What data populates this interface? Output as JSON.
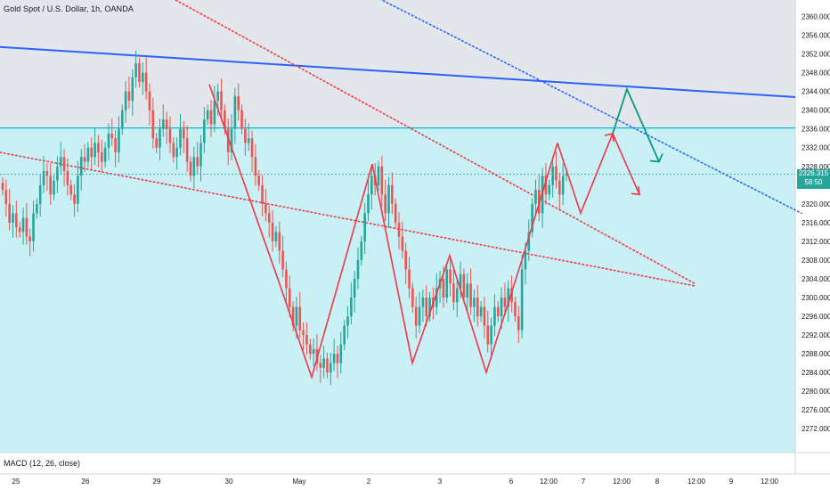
{
  "header": {
    "title": "Gold Spot / U.S. Dollar, 1h, OANDA"
  },
  "indicator": {
    "label": "MACD (12, 26, close)"
  },
  "last_price": {
    "value": "2326.315",
    "countdown": "58:50"
  },
  "colors": {
    "up": "#26a69a",
    "down": "#ef5350",
    "upper_zone": "#e3e6ea",
    "lower_zone": "#c9f0f5",
    "resistance": "#2962ff",
    "level_line": "#00bcd4",
    "trend_dotted_red": "#f23645",
    "trend_dotted_blue": "#2962ff",
    "zigzag": "#f23645",
    "projection_bull": "#089981",
    "projection_bear": "#f23645"
  },
  "chart_data": {
    "type": "candlestick",
    "title": "Gold Spot / U.S. Dollar, 1h, OANDA",
    "ylim": [
      2269,
      2362
    ],
    "y_ticks": [
      "2360.000",
      "2356.000",
      "2352.000",
      "2348.000",
      "2344.000",
      "2340.000",
      "2336.000",
      "2332.000",
      "2328.000",
      "2324.000",
      "2320.000",
      "2316.000",
      "2312.000",
      "2308.000",
      "2304.000",
      "2300.000",
      "2296.000",
      "2292.000",
      "2288.000",
      "2284.000",
      "2280.000",
      "2276.000",
      "2272.000"
    ],
    "x_ticks": [
      {
        "label": "25",
        "at": "Apr 25"
      },
      {
        "label": "26",
        "at": "Apr 26"
      },
      {
        "label": "29",
        "at": "Apr 29"
      },
      {
        "label": "30",
        "at": "Apr 30"
      },
      {
        "label": "May",
        "at": "May 1"
      },
      {
        "label": "2",
        "at": "May 2"
      },
      {
        "label": "3",
        "at": "May 3"
      },
      {
        "label": "6",
        "at": "May 6"
      },
      {
        "label": "12:00",
        "at": "May 6 12:00"
      },
      {
        "label": "7",
        "at": "May 7"
      },
      {
        "label": "12:00",
        "at": "May 7 12:00"
      },
      {
        "label": "8",
        "at": "May 8"
      },
      {
        "label": "12:00",
        "at": "May 8 12:00"
      },
      {
        "label": "9",
        "at": "May 9"
      },
      {
        "label": "12:00",
        "at": "May 9 12:00"
      }
    ],
    "close_path": [
      2323,
      2320,
      2316,
      2318,
      2315,
      2314,
      2317,
      2313,
      2312,
      2318,
      2320,
      2324,
      2327,
      2326,
      2322,
      2325,
      2328,
      2330,
      2327,
      2324,
      2322,
      2320,
      2326,
      2330,
      2329,
      2332,
      2330,
      2333,
      2331,
      2329,
      2332,
      2335,
      2334,
      2331,
      2336,
      2340,
      2344,
      2342,
      2347,
      2350,
      2346,
      2348,
      2344,
      2340,
      2334,
      2332,
      2336,
      2338,
      2336,
      2333,
      2330,
      2332,
      2336,
      2334,
      2329,
      2326,
      2330,
      2328,
      2333,
      2338,
      2340,
      2337,
      2342,
      2344,
      2340,
      2336,
      2331,
      2336,
      2343,
      2340,
      2336,
      2333,
      2334,
      2330,
      2326,
      2324,
      2320,
      2318,
      2316,
      2312,
      2314,
      2310,
      2306,
      2302,
      2298,
      2294,
      2298,
      2293,
      2292,
      2290,
      2288,
      2289,
      2286,
      2285,
      2287,
      2284,
      2286,
      2288,
      2286,
      2290,
      2294,
      2296,
      2300,
      2304,
      2308,
      2312,
      2318,
      2322,
      2326,
      2324,
      2328,
      2322,
      2318,
      2324,
      2320,
      2316,
      2313,
      2310,
      2306,
      2302,
      2298,
      2294,
      2298,
      2300,
      2296,
      2300,
      2298,
      2302,
      2304,
      2300,
      2306,
      2303,
      2299,
      2302,
      2305,
      2300,
      2303,
      2298,
      2300,
      2296,
      2298,
      2294,
      2290,
      2294,
      2298,
      2296,
      2300,
      2298,
      2302,
      2299,
      2296,
      2293,
      2306,
      2310,
      2314,
      2320,
      2323,
      2318,
      2326,
      2322,
      2324,
      2328,
      2325,
      2322,
      2326,
      2326.315
    ],
    "levels": [
      {
        "name": "upper-zone-top",
        "price": 2362
      },
      {
        "name": "level-line",
        "price": 2336.2
      },
      {
        "name": "resistance-line-start",
        "x_slot": 0,
        "price": 2353.5
      },
      {
        "name": "resistance-line-end",
        "x_slot": 1.0,
        "price": 2342.8
      }
    ],
    "zigzag": [
      [
        235,
        2345.5
      ],
      [
        312,
        2304
      ],
      [
        350,
        2283
      ],
      [
        418,
        2328.5
      ],
      [
        463,
        2286
      ],
      [
        505,
        2309
      ],
      [
        546,
        2284
      ],
      [
        586,
        2308
      ],
      [
        626,
        2333
      ]
    ],
    "projection": {
      "main": [
        [
          626,
          2333
        ],
        [
          652,
          2318
        ],
        [
          688,
          2335
        ]
      ],
      "bull": [
        [
          688,
          2335
        ],
        [
          704,
          2344.5
        ],
        [
          740,
          2329
        ]
      ],
      "bear": [
        [
          688,
          2335
        ],
        [
          718,
          2322
        ]
      ]
    },
    "trendlines": [
      {
        "name": "red-dotted-upper",
        "from": [
          0,
          2384
        ],
        "to": [
          780,
          2303
        ]
      },
      {
        "name": "red-dotted-lower",
        "from": [
          0,
          2331
        ],
        "to": [
          780,
          2302.5
        ]
      },
      {
        "name": "blue-dotted",
        "from": [
          310,
          2375
        ],
        "to": [
          900,
          2318
        ]
      }
    ]
  }
}
